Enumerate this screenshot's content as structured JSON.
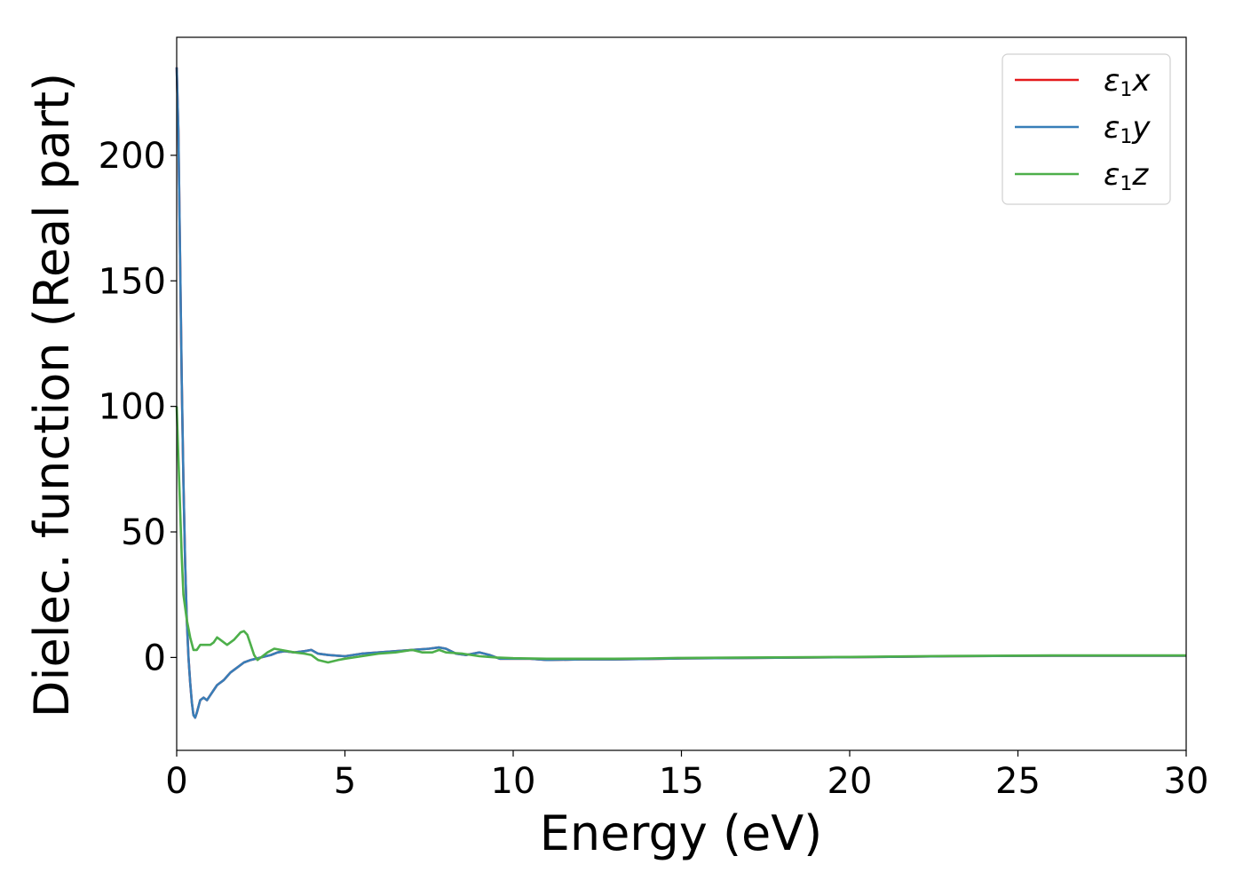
{
  "chart_data": {
    "type": "line",
    "xlabel": "Energy (eV)",
    "ylabel": "Dielec. function (Real part)",
    "xlim": [
      0,
      30
    ],
    "ylim": [
      -37,
      247
    ],
    "xticks": [
      0,
      5,
      10,
      15,
      20,
      25,
      30
    ],
    "yticks": [
      0,
      50,
      100,
      150,
      200
    ],
    "grid": false,
    "legend_position": "top-right",
    "series": [
      {
        "name": "ε1x",
        "legend": {
          "symbol": "ε",
          "sub": "1",
          "axis": "x"
        },
        "color": "#e41a1c",
        "points": [
          [
            0,
            235
          ],
          [
            0.05,
            210
          ],
          [
            0.1,
            160
          ],
          [
            0.15,
            110
          ],
          [
            0.2,
            70
          ],
          [
            0.25,
            38
          ],
          [
            0.3,
            15
          ],
          [
            0.35,
            0
          ],
          [
            0.4,
            -10
          ],
          [
            0.45,
            -18
          ],
          [
            0.5,
            -23
          ],
          [
            0.55,
            -24
          ],
          [
            0.6,
            -22
          ],
          [
            0.7,
            -17
          ],
          [
            0.8,
            -16
          ],
          [
            0.9,
            -17
          ],
          [
            1.0,
            -15
          ],
          [
            1.1,
            -13
          ],
          [
            1.2,
            -11
          ],
          [
            1.4,
            -9
          ],
          [
            1.6,
            -6
          ],
          [
            1.8,
            -4
          ],
          [
            2.0,
            -2
          ],
          [
            2.2,
            -1
          ],
          [
            2.5,
            0
          ],
          [
            2.8,
            1
          ],
          [
            3.0,
            2
          ],
          [
            3.2,
            2.5
          ],
          [
            3.5,
            2
          ],
          [
            3.8,
            2.5
          ],
          [
            4.0,
            3
          ],
          [
            4.2,
            1.5
          ],
          [
            4.5,
            1
          ],
          [
            5.0,
            0.5
          ],
          [
            5.5,
            1.5
          ],
          [
            6.0,
            2
          ],
          [
            6.5,
            2.5
          ],
          [
            7.0,
            3
          ],
          [
            7.5,
            3.5
          ],
          [
            7.8,
            4
          ],
          [
            8.0,
            3.5
          ],
          [
            8.3,
            1.5
          ],
          [
            8.6,
            1
          ],
          [
            9.0,
            2
          ],
          [
            9.3,
            1
          ],
          [
            9.6,
            -0.5
          ],
          [
            10.0,
            -0.5
          ],
          [
            10.5,
            -0.5
          ],
          [
            11.0,
            -1
          ],
          [
            12.0,
            -0.8
          ],
          [
            13.0,
            -0.8
          ],
          [
            14.0,
            -0.6
          ],
          [
            15.0,
            -0.4
          ],
          [
            17.0,
            -0.2
          ],
          [
            20.0,
            0.1
          ],
          [
            23.0,
            0.5
          ],
          [
            26.0,
            0.7
          ],
          [
            30.0,
            0.7
          ]
        ]
      },
      {
        "name": "ε1y",
        "legend": {
          "symbol": "ε",
          "sub": "1",
          "axis": "y"
        },
        "color": "#377eb8",
        "points": [
          [
            0,
            235
          ],
          [
            0.05,
            210
          ],
          [
            0.1,
            160
          ],
          [
            0.15,
            110
          ],
          [
            0.2,
            70
          ],
          [
            0.25,
            38
          ],
          [
            0.3,
            15
          ],
          [
            0.35,
            0
          ],
          [
            0.4,
            -10
          ],
          [
            0.45,
            -18
          ],
          [
            0.5,
            -23
          ],
          [
            0.55,
            -24
          ],
          [
            0.6,
            -22
          ],
          [
            0.7,
            -17
          ],
          [
            0.8,
            -16
          ],
          [
            0.9,
            -17
          ],
          [
            1.0,
            -15
          ],
          [
            1.1,
            -13
          ],
          [
            1.2,
            -11
          ],
          [
            1.4,
            -9
          ],
          [
            1.6,
            -6
          ],
          [
            1.8,
            -4
          ],
          [
            2.0,
            -2
          ],
          [
            2.2,
            -1
          ],
          [
            2.5,
            0
          ],
          [
            2.8,
            1
          ],
          [
            3.0,
            2
          ],
          [
            3.2,
            2.5
          ],
          [
            3.5,
            2
          ],
          [
            3.8,
            2.5
          ],
          [
            4.0,
            3
          ],
          [
            4.2,
            1.5
          ],
          [
            4.5,
            1
          ],
          [
            5.0,
            0.5
          ],
          [
            5.5,
            1.5
          ],
          [
            6.0,
            2
          ],
          [
            6.5,
            2.5
          ],
          [
            7.0,
            3
          ],
          [
            7.5,
            3.5
          ],
          [
            7.8,
            4
          ],
          [
            8.0,
            3.5
          ],
          [
            8.3,
            1.5
          ],
          [
            8.6,
            1
          ],
          [
            9.0,
            2
          ],
          [
            9.3,
            1
          ],
          [
            9.6,
            -0.5
          ],
          [
            10.0,
            -0.5
          ],
          [
            10.5,
            -0.5
          ],
          [
            11.0,
            -1
          ],
          [
            12.0,
            -0.8
          ],
          [
            13.0,
            -0.8
          ],
          [
            14.0,
            -0.6
          ],
          [
            15.0,
            -0.4
          ],
          [
            17.0,
            -0.2
          ],
          [
            20.0,
            0.1
          ],
          [
            23.0,
            0.5
          ],
          [
            26.0,
            0.7
          ],
          [
            30.0,
            0.7
          ]
        ]
      },
      {
        "name": "ε1z",
        "legend": {
          "symbol": "ε",
          "sub": "1",
          "axis": "z"
        },
        "color": "#4daf4a",
        "points": [
          [
            0,
            100
          ],
          [
            0.05,
            80
          ],
          [
            0.1,
            60
          ],
          [
            0.15,
            40
          ],
          [
            0.2,
            25
          ],
          [
            0.3,
            15
          ],
          [
            0.4,
            8
          ],
          [
            0.5,
            3
          ],
          [
            0.6,
            3
          ],
          [
            0.7,
            5
          ],
          [
            0.8,
            5
          ],
          [
            1.0,
            5
          ],
          [
            1.1,
            6
          ],
          [
            1.2,
            8
          ],
          [
            1.3,
            7
          ],
          [
            1.4,
            6
          ],
          [
            1.5,
            5
          ],
          [
            1.7,
            7
          ],
          [
            1.9,
            10
          ],
          [
            2.0,
            10.5
          ],
          [
            2.1,
            9
          ],
          [
            2.2,
            5
          ],
          [
            2.3,
            1
          ],
          [
            2.4,
            -1
          ],
          [
            2.5,
            0
          ],
          [
            2.7,
            2
          ],
          [
            2.9,
            3.5
          ],
          [
            3.1,
            3
          ],
          [
            3.3,
            2.5
          ],
          [
            3.5,
            2
          ],
          [
            3.8,
            1.5
          ],
          [
            4.0,
            1
          ],
          [
            4.2,
            -1
          ],
          [
            4.5,
            -2
          ],
          [
            4.8,
            -1
          ],
          [
            5.0,
            -0.5
          ],
          [
            5.5,
            0.5
          ],
          [
            6.0,
            1.5
          ],
          [
            6.5,
            2
          ],
          [
            7.0,
            3
          ],
          [
            7.3,
            2
          ],
          [
            7.6,
            2
          ],
          [
            7.8,
            3
          ],
          [
            8.0,
            2
          ],
          [
            8.5,
            1.5
          ],
          [
            9.0,
            0.5
          ],
          [
            9.5,
            0
          ],
          [
            10.0,
            -0.3
          ],
          [
            11.0,
            -0.5
          ],
          [
            12.0,
            -0.5
          ],
          [
            13.0,
            -0.5
          ],
          [
            14.0,
            -0.4
          ],
          [
            15.0,
            -0.2
          ],
          [
            17.0,
            0
          ],
          [
            20.0,
            0.2
          ],
          [
            23.0,
            0.6
          ],
          [
            26.0,
            0.8
          ],
          [
            30.0,
            0.8
          ]
        ]
      }
    ]
  }
}
